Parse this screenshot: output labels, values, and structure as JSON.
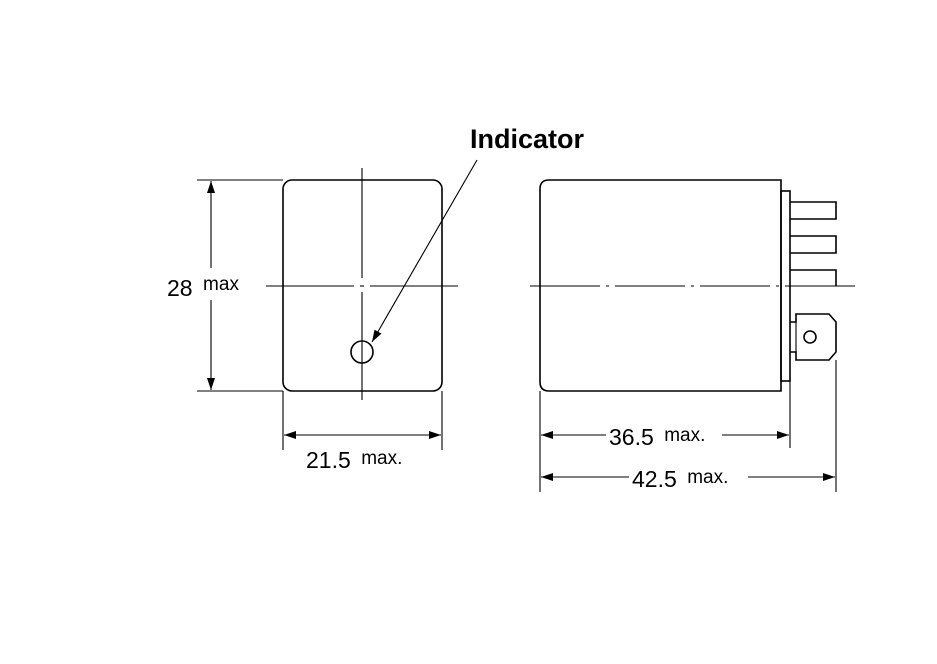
{
  "callout": {
    "label": "Indicator"
  },
  "front_view": {
    "height_value": "28",
    "height_unit": "max",
    "width_value": "21.5",
    "width_unit": "max."
  },
  "side_view": {
    "body_length_value": "36.5",
    "body_length_unit": "max.",
    "overall_length_value": "42.5",
    "overall_length_unit": "max."
  }
}
